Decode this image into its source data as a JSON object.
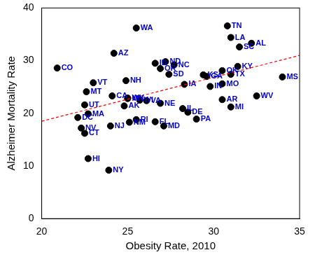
{
  "chart_data": {
    "type": "scatter",
    "x_label": "Obesity Rate, 2010",
    "y_label": "Alzheimer Mortality Rate",
    "labels": [
      "CO",
      "WA",
      "TN",
      "LA",
      "AL",
      "SC",
      "AZ",
      "ID",
      "ND",
      "NC",
      "OR",
      "SD",
      "KS",
      "GA",
      "OK",
      "KY",
      "TX",
      "IN",
      "MO",
      "IA",
      "AR",
      "MI",
      "WV",
      "MS",
      "PA",
      "DE",
      "IL",
      "MD",
      "FL",
      "NE",
      "VA",
      "WI",
      "AK",
      "WY",
      "MN",
      "CA",
      "NH",
      "VT",
      "MT",
      "UT",
      "MA",
      "DC",
      "NJ",
      "NV",
      "CT",
      "RI",
      "NM",
      "HI",
      "NY"
    ],
    "x": [
      20.9,
      25.5,
      30.8,
      31.0,
      32.2,
      31.5,
      24.2,
      26.6,
      27.2,
      27.7,
      26.9,
      27.4,
      29.4,
      29.6,
      30.5,
      31.4,
      31.0,
      29.8,
      30.5,
      28.3,
      30.5,
      31.0,
      32.5,
      34.0,
      29.0,
      28.5,
      28.2,
      27.1,
      26.6,
      26.9,
      26.1,
      25.7,
      24.8,
      25.0,
      25.0,
      24.1,
      24.9,
      23.0,
      22.6,
      22.5,
      22.7,
      22.1,
      24.0,
      22.3,
      22.5,
      25.5,
      25.1,
      22.7,
      23.9
    ],
    "y": [
      28.6,
      36.2,
      36.6,
      34.4,
      33.3,
      32.6,
      31.4,
      29.5,
      29.8,
      29.2,
      28.5,
      27.4,
      27.3,
      27.0,
      28.1,
      28.9,
      27.4,
      25.1,
      25.6,
      25.5,
      22.6,
      21.2,
      23.3,
      26.9,
      18.9,
      20.2,
      20.9,
      17.6,
      18.4,
      21.9,
      22.4,
      22.5,
      21.4,
      22.9,
      22.8,
      23.3,
      26.2,
      25.8,
      24.1,
      21.6,
      19.9,
      19.2,
      17.6,
      17.2,
      16.2,
      18.8,
      18.3,
      11.4,
      9.2
    ],
    "color": "#000000",
    "label_color": "#0000cc",
    "marker": "circle",
    "trend": {
      "x": [
        20,
        35
      ],
      "y": [
        18.5,
        31.0
      ],
      "color": "#ff0000",
      "line_style": "dashed"
    },
    "xlim": [
      20,
      35
    ],
    "xticks": [
      20,
      25,
      30,
      35
    ],
    "ylim": [
      0,
      40
    ],
    "yticks": [
      0,
      10,
      20,
      30,
      40
    ],
    "grid": false
  }
}
